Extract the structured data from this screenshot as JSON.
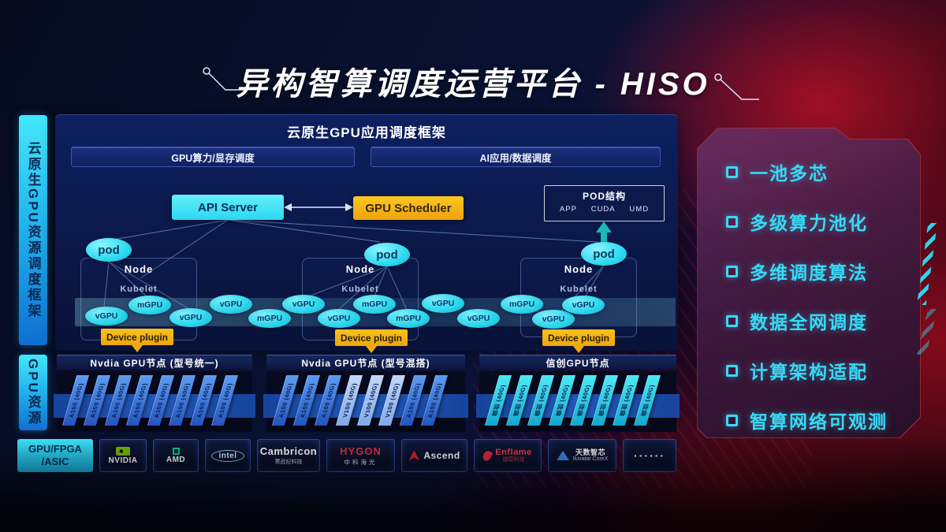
{
  "title": "异构智算调度运营平台 - HISO",
  "colors": {
    "accent_cyan": "#35E2F6",
    "accent_yellow": "#F4B41A",
    "card_blue": "#3E7EDC",
    "card_cyan": "#2BD8EC",
    "bg_red": "#A00F20"
  },
  "sidebar": {
    "top_label": "云原生GPU资源调度框架",
    "bottom_label": "GPU资源"
  },
  "framework": {
    "header": "云原生GPU应用调度框架",
    "bars": [
      "GPU算力/显存调度",
      "AI应用/数据调度"
    ]
  },
  "scheduler": {
    "api_server": "API Server",
    "gpu_scheduler": "GPU Scheduler"
  },
  "pod_structure": {
    "title": "POD结构",
    "items": [
      "APP",
      "CUDA",
      "UMD"
    ]
  },
  "nodes": [
    {
      "pod": "pod",
      "title": "Node",
      "agent": "Kubelet",
      "plugin": "Device plugin"
    },
    {
      "pod": "pod",
      "title": "Node",
      "agent": "Kubelet",
      "plugin": "Device plugin"
    },
    {
      "pod": "pod",
      "title": "Node",
      "agent": "Kubelet",
      "plugin": "Device plugin"
    }
  ],
  "gpu_band": {
    "ellipses": [
      "vGPU",
      "mGPU",
      "vGPU",
      "vGPU",
      "mGPU",
      "vGPU",
      "vGPU",
      "mGPU",
      "mGPU",
      "vGPU",
      "vGPU",
      "mGPU",
      "vGPU",
      "vGPU"
    ]
  },
  "gpu_sections": [
    {
      "header": "Nvdia GPU节点 (型号统一)",
      "cards": [
        {
          "label": "A100 (40G)",
          "variant": "blue"
        },
        {
          "label": "A100 (40G)",
          "variant": "blue"
        },
        {
          "label": "A100 (40G)",
          "variant": "blue"
        },
        {
          "label": "A100 (40G)",
          "variant": "blue"
        },
        {
          "label": "A100 (40G)",
          "variant": "blue"
        },
        {
          "label": "A100 (40G)",
          "variant": "blue"
        },
        {
          "label": "A100 (40G)",
          "variant": "blue"
        },
        {
          "label": "A100 (40G)",
          "variant": "blue"
        }
      ]
    },
    {
      "header": "Nvdia GPU节点 (型号混搭)",
      "cards": [
        {
          "label": "A100 (40G)",
          "variant": "blue"
        },
        {
          "label": "A100 (40G)",
          "variant": "blue"
        },
        {
          "label": "A100 (40G)",
          "variant": "blue"
        },
        {
          "label": "V100 (40G)",
          "variant": "light"
        },
        {
          "label": "V100 (40G)",
          "variant": "light"
        },
        {
          "label": "V100 (40G)",
          "variant": "light"
        },
        {
          "label": "A100 (40G)",
          "variant": "blue"
        },
        {
          "label": "A100 (40G)",
          "variant": "blue"
        }
      ]
    },
    {
      "header": "信创GPU节点",
      "cards": [
        {
          "label": "信创 (40G)",
          "variant": "cyan"
        },
        {
          "label": "信创 (40G)",
          "variant": "cyan"
        },
        {
          "label": "信创 (40G)",
          "variant": "cyan"
        },
        {
          "label": "信创 (40G)",
          "variant": "cyan"
        },
        {
          "label": "信创 (40G)",
          "variant": "cyan"
        },
        {
          "label": "信创 (40G)",
          "variant": "cyan"
        },
        {
          "label": "信创 (40G)",
          "variant": "cyan"
        },
        {
          "label": "信创 (40G)",
          "variant": "cyan"
        }
      ]
    }
  ],
  "vendors": {
    "label_line1": "GPU/FPGA",
    "label_line2": "/ASIC",
    "items": [
      {
        "icon": "nvidia-logo",
        "name": "NVIDIA"
      },
      {
        "icon": "amd-logo",
        "name": "AMD"
      },
      {
        "icon": "intel-logo",
        "name": "intel"
      },
      {
        "icon": "cambricon-logo",
        "name": "Cambricon",
        "sub": "寒武纪科技"
      },
      {
        "icon": "hygon-logo",
        "name": "HYGON",
        "sub": "中科海光"
      },
      {
        "icon": "ascend-logo",
        "name": "Ascend"
      },
      {
        "icon": "enflame-logo",
        "name": "Enflame",
        "sub": "燧原科技"
      },
      {
        "icon": "iluvatar-logo",
        "name": "天数智芯",
        "sub": "Iluvatar CoreX"
      },
      {
        "icon": "ellipsis-icon",
        "name": "······"
      }
    ]
  },
  "features": {
    "items": [
      "一池多芯",
      "多级算力池化",
      "多维调度算法",
      "数据全网调度",
      "计算架构适配",
      "智算网络可观测"
    ]
  }
}
